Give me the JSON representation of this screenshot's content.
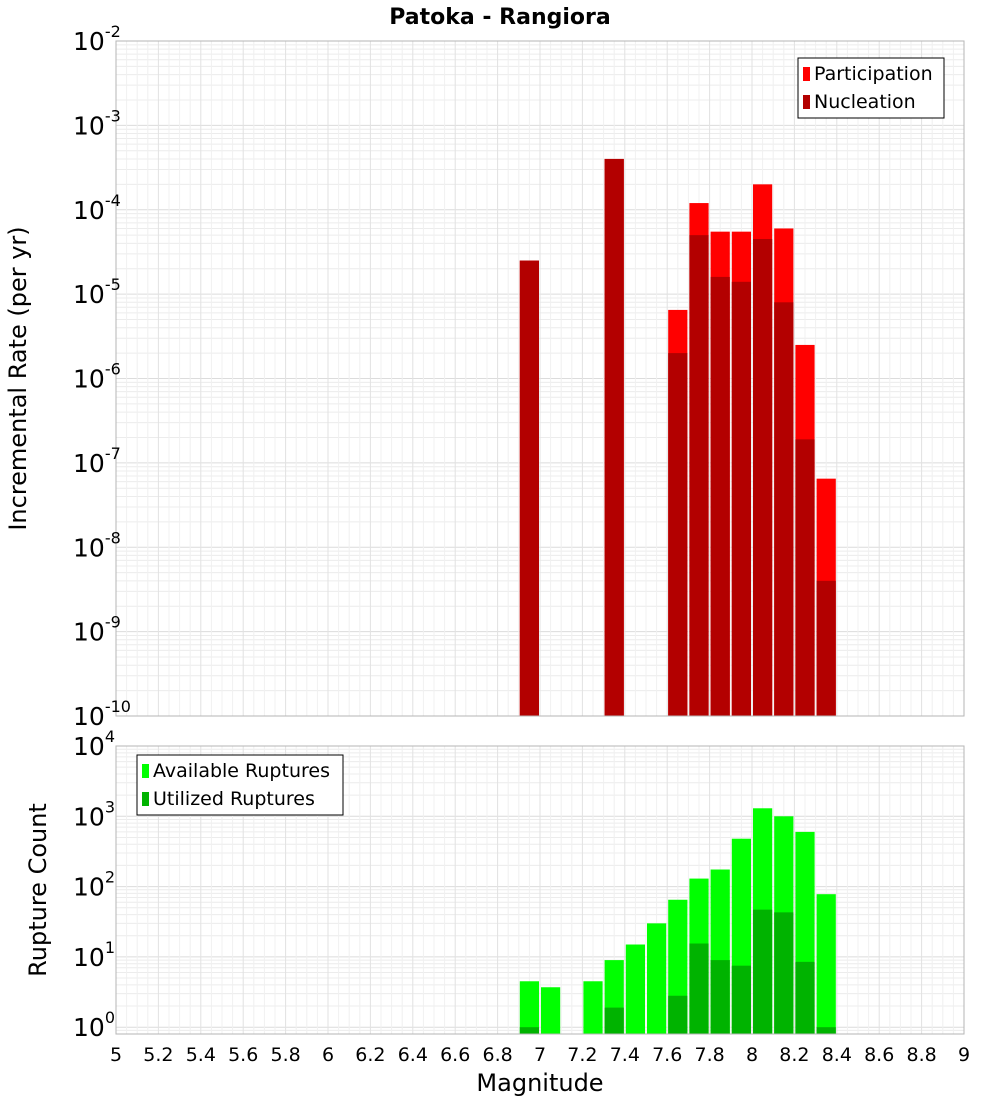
{
  "title": "Patoka - Rangiora",
  "chart_data": [
    {
      "type": "bar",
      "ylabel": "Incremental Rate (per yr)",
      "yscale": "log",
      "ylim": [
        1e-10,
        0.01
      ],
      "yticks": [
        {
          "base": "10",
          "exp": "-10",
          "value": 1e-10
        },
        {
          "base": "10",
          "exp": "-9",
          "value": 1e-09
        },
        {
          "base": "10",
          "exp": "-8",
          "value": 1e-08
        },
        {
          "base": "10",
          "exp": "-7",
          "value": 1e-07
        },
        {
          "base": "10",
          "exp": "-6",
          "value": 1e-06
        },
        {
          "base": "10",
          "exp": "-5",
          "value": 1e-05
        },
        {
          "base": "10",
          "exp": "-4",
          "value": 0.0001
        },
        {
          "base": "10",
          "exp": "-3",
          "value": 0.001
        },
        {
          "base": "10",
          "exp": "-2",
          "value": 0.01
        }
      ],
      "grid": true,
      "legend_position": "top-right",
      "series": [
        {
          "name": "Participation",
          "color": "#ff0000",
          "x": [
            6.95,
            7.35,
            7.65,
            7.75,
            7.85,
            7.95,
            8.05,
            8.15,
            8.25,
            8.35
          ],
          "values": [
            2.5e-05,
            0.0004,
            6.5e-06,
            0.00012,
            5.5e-05,
            5.5e-05,
            0.0002,
            6e-05,
            2.5e-06,
            6.5e-08
          ]
        },
        {
          "name": "Nucleation",
          "color": "#b30000",
          "x": [
            6.95,
            7.35,
            7.65,
            7.75,
            7.85,
            7.95,
            8.05,
            8.15,
            8.25,
            8.35
          ],
          "values": [
            2.5e-05,
            0.0004,
            2e-06,
            5e-05,
            1.6e-05,
            1.4e-05,
            4.5e-05,
            8e-06,
            1.9e-07,
            4e-09
          ]
        }
      ]
    },
    {
      "type": "bar",
      "ylabel": "Rupture Count",
      "xlabel": "Magnitude",
      "yscale": "log",
      "ylim": [
        0.8,
        10000
      ],
      "yticks": [
        {
          "base": "10",
          "exp": "0",
          "value": 1
        },
        {
          "base": "10",
          "exp": "1",
          "value": 10
        },
        {
          "base": "10",
          "exp": "2",
          "value": 100
        },
        {
          "base": "10",
          "exp": "3",
          "value": 1000
        },
        {
          "base": "10",
          "exp": "4",
          "value": 10000
        }
      ],
      "xlim": [
        5,
        9
      ],
      "xticks": [
        "5",
        "5.2",
        "5.4",
        "5.6",
        "5.8",
        "6",
        "6.2",
        "6.4",
        "6.6",
        "6.8",
        "7",
        "7.2",
        "7.4",
        "7.6",
        "7.8",
        "8",
        "8.2",
        "8.4",
        "8.6",
        "8.8",
        "9"
      ],
      "grid": true,
      "legend_position": "top-left",
      "series": [
        {
          "name": "Available Ruptures",
          "color": "#00ff00",
          "x": [
            6.95,
            7.05,
            7.25,
            7.35,
            7.45,
            7.55,
            7.65,
            7.75,
            7.85,
            7.95,
            8.05,
            8.15,
            8.25,
            8.35
          ],
          "values": [
            4.5,
            3.7,
            4.5,
            9,
            15,
            30,
            65,
            130,
            175,
            480,
            1300,
            1000,
            600,
            78
          ]
        },
        {
          "name": "Utilized Ruptures",
          "color": "#00b300",
          "x": [
            6.95,
            7.35,
            7.65,
            7.75,
            7.85,
            7.95,
            8.05,
            8.15,
            8.25,
            8.35
          ],
          "values": [
            1,
            1.9,
            2.8,
            15.5,
            9,
            7.5,
            47,
            43,
            8.5,
            1
          ]
        }
      ]
    }
  ]
}
